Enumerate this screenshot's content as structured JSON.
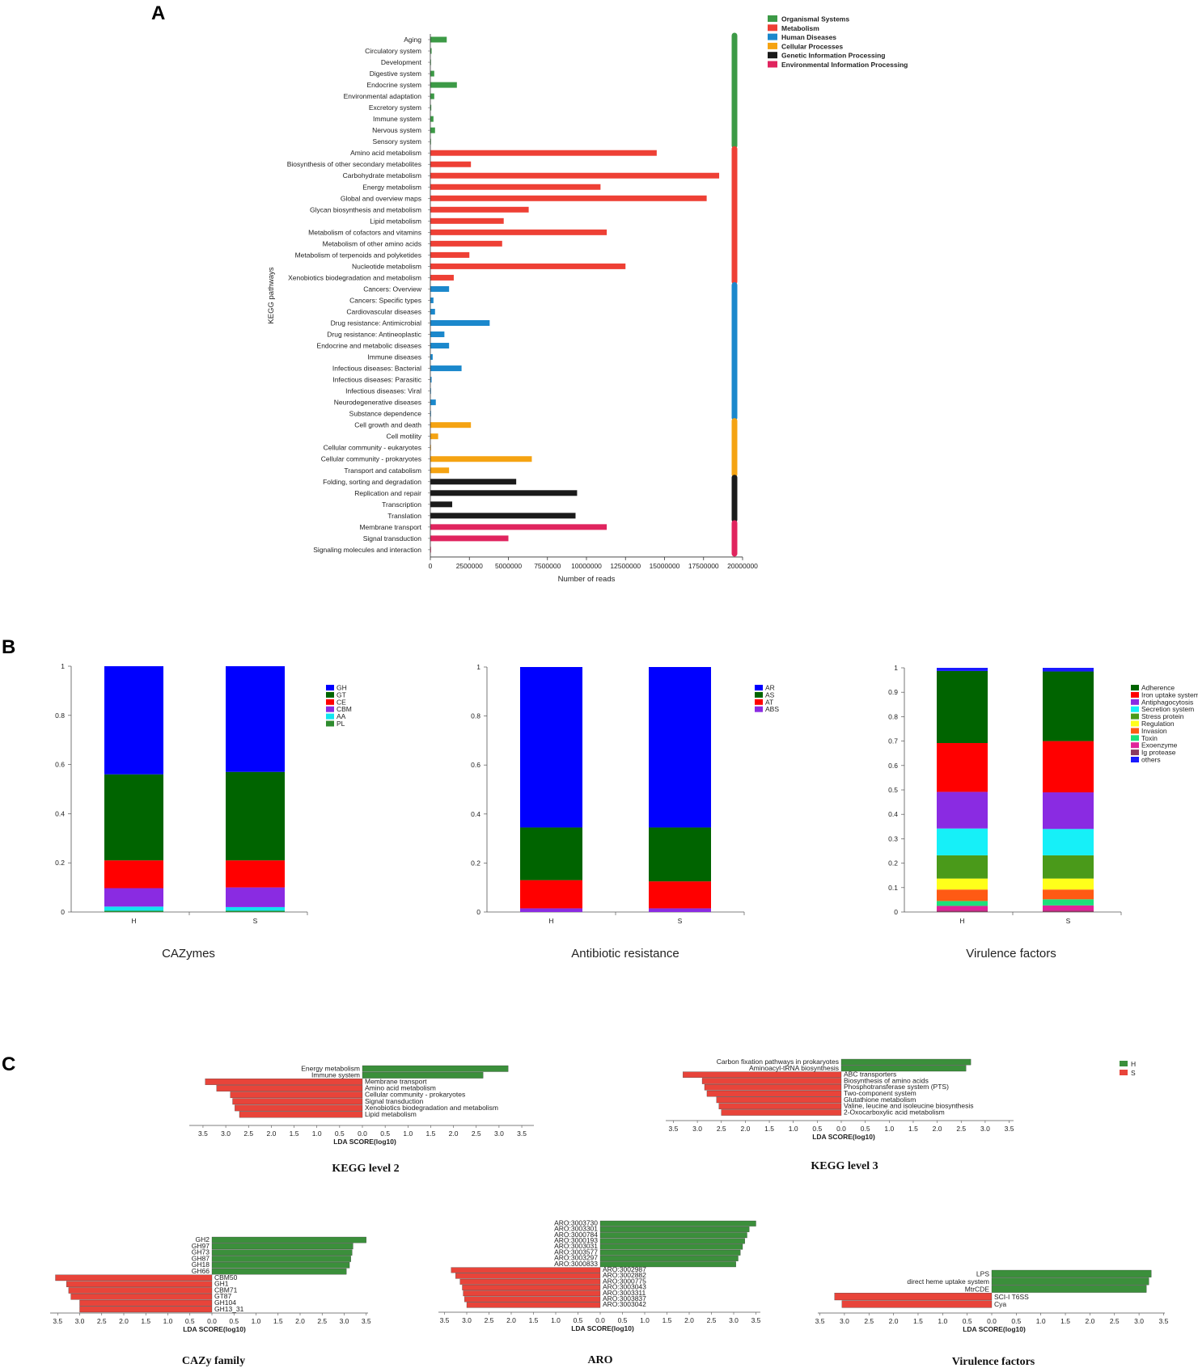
{
  "panels": {
    "a": "A",
    "b": "B",
    "c": "C"
  },
  "chart_data": [
    {
      "id": "kegg_pathways",
      "type": "bar",
      "orientation": "horizontal",
      "ylabel": "KEGG pathways",
      "xlabel": "Number of reads",
      "xlim": [
        0,
        20000000
      ],
      "xticks": [
        "0",
        "2500000",
        "5000000",
        "7500000",
        "10000000",
        "12500000",
        "15000000",
        "17500000",
        "20000000"
      ],
      "legend": [
        {
          "name": "Organismal Systems",
          "color": "#3c9a46"
        },
        {
          "name": "Metabolism",
          "color": "#ee4035"
        },
        {
          "name": "Human Diseases",
          "color": "#1b88cc"
        },
        {
          "name": "Cellular Processes",
          "color": "#f5a312"
        },
        {
          "name": "Genetic Information Processing",
          "color": "#1a1a1a"
        },
        {
          "name": "Environmental Information Processing",
          "color": "#e0245e"
        }
      ],
      "groups": [
        {
          "color": "#3c9a46",
          "items": [
            [
              "Aging",
              1050000
            ],
            [
              "Circulatory system",
              80000
            ],
            [
              "Development",
              30000
            ],
            [
              "Digestive system",
              250000
            ],
            [
              "Endocrine system",
              1700000
            ],
            [
              "Environmental adaptation",
              250000
            ],
            [
              "Excretory system",
              60000
            ],
            [
              "Immune system",
              200000
            ],
            [
              "Nervous system",
              300000
            ],
            [
              "Sensory system",
              30000
            ]
          ]
        },
        {
          "color": "#ee4035",
          "items": [
            [
              "Amino acid metabolism",
              14500000
            ],
            [
              "Biosynthesis of other secondary metabolites",
              2600000
            ],
            [
              "Carbohydrate metabolism",
              18500000
            ],
            [
              "Energy metabolism",
              10900000
            ],
            [
              "Global and overview maps",
              17700000
            ],
            [
              "Glycan biosynthesis and metabolism",
              6300000
            ],
            [
              "Lipid metabolism",
              4700000
            ],
            [
              "Metabolism of cofactors and vitamins",
              11300000
            ],
            [
              "Metabolism of other amino acids",
              4600000
            ],
            [
              "Metabolism of terpenoids and polyketides",
              2500000
            ],
            [
              "Nucleotide metabolism",
              12500000
            ],
            [
              "Xenobiotics biodegradation and metabolism",
              1500000
            ]
          ]
        },
        {
          "color": "#1b88cc",
          "items": [
            [
              "Cancers: Overview",
              1200000
            ],
            [
              "Cancers: Specific types",
              200000
            ],
            [
              "Cardiovascular diseases",
              300000
            ],
            [
              "Drug resistance: Antimicrobial",
              3800000
            ],
            [
              "Drug resistance: Antineoplastic",
              900000
            ],
            [
              "Endocrine and metabolic diseases",
              1200000
            ],
            [
              "Immune diseases",
              150000
            ],
            [
              "Infectious diseases: Bacterial",
              2000000
            ],
            [
              "Infectious diseases: Parasitic",
              80000
            ],
            [
              "Infectious diseases: Viral",
              30000
            ],
            [
              "Neurodegenerative diseases",
              350000
            ],
            [
              "Substance dependence",
              20000
            ]
          ]
        },
        {
          "color": "#f5a312",
          "items": [
            [
              "Cell growth and death",
              2600000
            ],
            [
              "Cell motility",
              500000
            ],
            [
              "Cellular community - eukaryotes",
              20000
            ],
            [
              "Cellular community - prokaryotes",
              6500000
            ],
            [
              "Transport and catabolism",
              1200000
            ]
          ]
        },
        {
          "color": "#1a1a1a",
          "items": [
            [
              "Folding, sorting and degradation",
              5500000
            ],
            [
              "Replication and repair",
              9400000
            ],
            [
              "Transcription",
              1400000
            ],
            [
              "Translation",
              9300000
            ]
          ]
        },
        {
          "color": "#e0245e",
          "items": [
            [
              "Membrane transport",
              11300000
            ],
            [
              "Signal transduction",
              5000000
            ],
            [
              "Signaling molecules and interaction",
              30000
            ]
          ]
        }
      ]
    },
    {
      "id": "cazymes",
      "type": "bar",
      "stacked": true,
      "title": "CAZymes",
      "categories": [
        "H",
        "S"
      ],
      "ylim": [
        0,
        1
      ],
      "yticks": [
        "0",
        "0.2",
        "0.4",
        "0.6",
        "0.8",
        "1"
      ],
      "series": [
        {
          "name": "PL",
          "color": "#2e8b2e",
          "values": [
            0.005,
            0.005
          ]
        },
        {
          "name": "AA",
          "color": "#11e6f0",
          "values": [
            0.017,
            0.015
          ]
        },
        {
          "name": "CBM",
          "color": "#8a2be2",
          "values": [
            0.075,
            0.08
          ]
        },
        {
          "name": "CE",
          "color": "#ff0000",
          "values": [
            0.113,
            0.11
          ]
        },
        {
          "name": "GT",
          "color": "#006400",
          "values": [
            0.35,
            0.36
          ]
        },
        {
          "name": "GH",
          "color": "#0000ff",
          "values": [
            0.44,
            0.43
          ]
        }
      ],
      "legend_order": [
        "GH",
        "GT",
        "CE",
        "CBM",
        "AA",
        "PL"
      ]
    },
    {
      "id": "antibiotic",
      "type": "bar",
      "stacked": true,
      "title": "Antibiotic resistance",
      "categories": [
        "H",
        "S"
      ],
      "ylim": [
        0,
        1
      ],
      "yticks": [
        "0",
        "0.2",
        "0.4",
        "0.6",
        "0.8",
        "1"
      ],
      "series": [
        {
          "name": "ABS",
          "color": "#8a2be2",
          "values": [
            0.015,
            0.015
          ]
        },
        {
          "name": "AT",
          "color": "#ff0000",
          "values": [
            0.115,
            0.11
          ]
        },
        {
          "name": "AS",
          "color": "#006400",
          "values": [
            0.215,
            0.22
          ]
        },
        {
          "name": "AR",
          "color": "#0000ff",
          "values": [
            0.655,
            0.655
          ]
        }
      ],
      "legend_order": [
        "AR",
        "AS",
        "AT",
        "ABS"
      ]
    },
    {
      "id": "virulence",
      "type": "bar",
      "stacked": true,
      "title": "Virulence factors",
      "categories": [
        "H",
        "S"
      ],
      "ylim": [
        0,
        1
      ],
      "yticks": [
        "0",
        "0.1",
        "0.2",
        "0.3",
        "0.4",
        "0.5",
        "0.6",
        "0.7",
        "0.8",
        "0.9",
        "1"
      ],
      "series": [
        {
          "name": "others",
          "color": "#1a1aff",
          "values": [
            0.0,
            0.0
          ]
        },
        {
          "name": "Ig protease",
          "color": "#8b3a62",
          "values": [
            0.005,
            0.005
          ]
        },
        {
          "name": "Exoenzyme",
          "color": "#e0249a",
          "values": [
            0.02,
            0.022
          ]
        },
        {
          "name": "Toxin",
          "color": "#1de07a",
          "values": [
            0.02,
            0.025
          ]
        },
        {
          "name": "Invasion",
          "color": "#ff5a14",
          "values": [
            0.047,
            0.04
          ]
        },
        {
          "name": "Regulation",
          "color": "#ffff1a",
          "values": [
            0.045,
            0.045
          ]
        },
        {
          "name": "Stress protein",
          "color": "#4a9a1a",
          "values": [
            0.095,
            0.095
          ]
        },
        {
          "name": "Secretion system",
          "color": "#16f0f8",
          "values": [
            0.11,
            0.108
          ]
        },
        {
          "name": "Antiphagocytosis",
          "color": "#8a2be2",
          "values": [
            0.15,
            0.15
          ]
        },
        {
          "name": "Iron uptake system",
          "color": "#ff0000",
          "values": [
            0.2,
            0.21
          ]
        },
        {
          "name": "Adherence",
          "color": "#006400",
          "values": [
            0.295,
            0.285
          ]
        },
        {
          "name": "others_top",
          "color": "#1a1aff",
          "values": [
            0.013,
            0.015
          ]
        }
      ],
      "legend_order": [
        "Adherence",
        "Iron uptake system",
        "Antiphagocytosis",
        "Secretion system",
        "Stress protein",
        "Regulation",
        "Invasion",
        "Toxin",
        "Exoenzyme",
        "Ig protease",
        "others"
      ]
    },
    {
      "id": "lefse_kegg2",
      "type": "bar",
      "orientation": "horizontal",
      "title": "KEGG  level 2",
      "xlabel": "LDA SCORE(log10)",
      "xticks": [
        "3.5",
        "3.0",
        "2.5",
        "2.0",
        "1.5",
        "1.0",
        "0.5",
        "0.0",
        "0.5",
        "1.0",
        "1.5",
        "2.0",
        "2.5",
        "3.0",
        "3.5"
      ],
      "bars": [
        {
          "label": "Energy metabolism",
          "group": "H",
          "value": 3.2
        },
        {
          "label": "Immune system",
          "group": "H",
          "value": 2.65
        },
        {
          "label": "Membrane transport",
          "group": "S",
          "value": 3.45
        },
        {
          "label": "Amino acid metabolism",
          "group": "S",
          "value": 3.2
        },
        {
          "label": "Cellular community - prokaryotes",
          "group": "S",
          "value": 2.9
        },
        {
          "label": "Signal transduction",
          "group": "S",
          "value": 2.85
        },
        {
          "label": "Xenobiotics biodegradation and metabolism",
          "group": "S",
          "value": 2.8
        },
        {
          "label": "Lipid metabolism",
          "group": "S",
          "value": 2.7
        }
      ]
    },
    {
      "id": "lefse_kegg3",
      "type": "bar",
      "orientation": "horizontal",
      "title": "KEGG  level 3",
      "xlabel": "LDA SCORE(log10)",
      "xticks": [
        "3.5",
        "3.0",
        "2.5",
        "2.0",
        "1.5",
        "1.0",
        "0.5",
        "0.0",
        "0.5",
        "1.0",
        "1.5",
        "2.0",
        "2.5",
        "3.0",
        "3.5"
      ],
      "legend": [
        {
          "name": "H",
          "color": "#3b8f3b"
        },
        {
          "name": "S",
          "color": "#e8443a"
        }
      ],
      "bars": [
        {
          "label": "Carbon fixation pathways in prokaryotes",
          "group": "H",
          "value": 2.7
        },
        {
          "label": "Aminoacyl-tRNA biosynthesis",
          "group": "H",
          "value": 2.6
        },
        {
          "label": "ABC transporters",
          "group": "S",
          "value": 3.3
        },
        {
          "label": "Biosynthesis of amino acids",
          "group": "S",
          "value": 2.9
        },
        {
          "label": "Phosphotransferase system (PTS)",
          "group": "S",
          "value": 2.85
        },
        {
          "label": "Two-component system",
          "group": "S",
          "value": 2.8
        },
        {
          "label": "Glutathione metabolism",
          "group": "S",
          "value": 2.6
        },
        {
          "label": "Valine, leucine and isoleucine biosynthesis",
          "group": "S",
          "value": 2.55
        },
        {
          "label": "2-Oxocarboxylic acid metabolism",
          "group": "S",
          "value": 2.5
        }
      ]
    },
    {
      "id": "lefse_cazy",
      "type": "bar",
      "orientation": "horizontal",
      "title": "CAZy family",
      "xlabel": "LDA SCORE(log10)",
      "xticks": [
        "3.5",
        "3.0",
        "2.5",
        "2.0",
        "1.5",
        "1.0",
        "0.5",
        "0.0",
        "0.5",
        "1.0",
        "1.5",
        "2.0",
        "2.5",
        "3.0",
        "3.5"
      ],
      "bars": [
        {
          "label": "GH2",
          "group": "H",
          "value": 3.5
        },
        {
          "label": "GH97",
          "group": "H",
          "value": 3.2
        },
        {
          "label": "GH73",
          "group": "H",
          "value": 3.18
        },
        {
          "label": "GH87",
          "group": "H",
          "value": 3.15
        },
        {
          "label": "GH18",
          "group": "H",
          "value": 3.12
        },
        {
          "label": "GH66",
          "group": "H",
          "value": 3.05
        },
        {
          "label": "CBM50",
          "group": "S",
          "value": 3.55
        },
        {
          "label": "GH1",
          "group": "S",
          "value": 3.3
        },
        {
          "label": "CBM71",
          "group": "S",
          "value": 3.25
        },
        {
          "label": "GT87",
          "group": "S",
          "value": 3.2
        },
        {
          "label": "GH104",
          "group": "S",
          "value": 3.0
        },
        {
          "label": "GH13_31",
          "group": "S",
          "value": 3.0
        }
      ]
    },
    {
      "id": "lefse_aro",
      "type": "bar",
      "orientation": "horizontal",
      "title": "ARO",
      "xlabel": "LDA SCORE(log10)",
      "xticks": [
        "3.5",
        "3.0",
        "2.5",
        "2.0",
        "1.5",
        "1.0",
        "0.5",
        "0.0",
        "0.5",
        "1.0",
        "1.5",
        "2.0",
        "2.5",
        "3.0",
        "3.5"
      ],
      "bars": [
        {
          "label": "ARO:3003730",
          "group": "H",
          "value": 3.5
        },
        {
          "label": "ARO:3003301",
          "group": "H",
          "value": 3.35
        },
        {
          "label": "ARO:3000784",
          "group": "H",
          "value": 3.3
        },
        {
          "label": "ARO:3000193",
          "group": "H",
          "value": 3.25
        },
        {
          "label": "ARO:3003031",
          "group": "H",
          "value": 3.2
        },
        {
          "label": "ARO:3003577",
          "group": "H",
          "value": 3.15
        },
        {
          "label": "ARO:3003297",
          "group": "H",
          "value": 3.1
        },
        {
          "label": "ARO:3000833",
          "group": "H",
          "value": 3.05
        },
        {
          "label": "ARO:3002987",
          "group": "S",
          "value": 3.35
        },
        {
          "label": "ARO:3002882",
          "group": "S",
          "value": 3.25
        },
        {
          "label": "ARO:3000775",
          "group": "S",
          "value": 3.15
        },
        {
          "label": "ARO:3003043",
          "group": "S",
          "value": 3.1
        },
        {
          "label": "ARO:3003311",
          "group": "S",
          "value": 3.08
        },
        {
          "label": "ARO:3003837",
          "group": "S",
          "value": 3.05
        },
        {
          "label": "ARO:3003042",
          "group": "S",
          "value": 3.0
        }
      ]
    },
    {
      "id": "lefse_vf",
      "type": "bar",
      "orientation": "horizontal",
      "title": "Virulence factors",
      "xlabel": "LDA SCORE(log10)",
      "xticks": [
        "3.5",
        "3.0",
        "2.5",
        "2.0",
        "1.5",
        "1.0",
        "0.5",
        "0.0",
        "0.5",
        "1.0",
        "1.5",
        "2.0",
        "2.5",
        "3.0",
        "3.5"
      ],
      "bars": [
        {
          "label": "LPS",
          "group": "H",
          "value": 3.25
        },
        {
          "label": "direct heme uptake system",
          "group": "H",
          "value": 3.2
        },
        {
          "label": "MtrCDE",
          "group": "H",
          "value": 3.15
        },
        {
          "label": "SCI-I T6SS",
          "group": "S",
          "value": 3.2
        },
        {
          "label": "Cya",
          "group": "S",
          "value": 3.05
        }
      ]
    }
  ]
}
